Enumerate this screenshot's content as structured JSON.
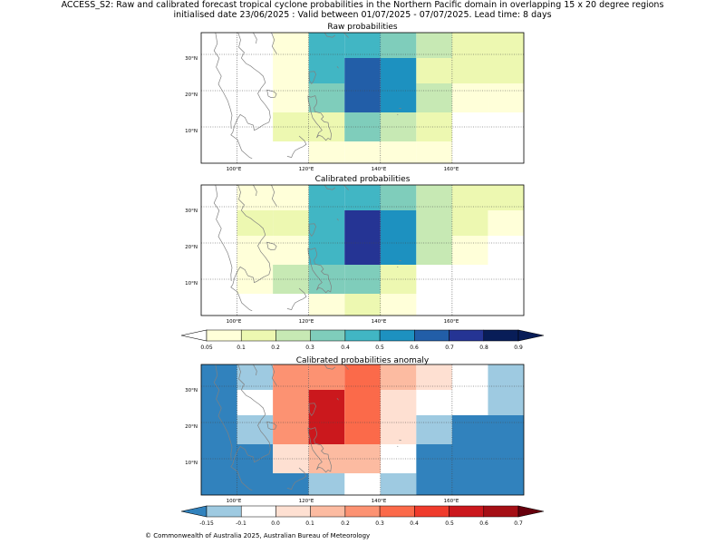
{
  "title_line1": "ACCESS_S2: Raw and calibrated forecast tropical cyclone probabilities in the Northern Pacific domain in overlapping 15 x 20 degree regions",
  "title_line2": "initialised date 23/06/2025 :  Valid between 01/07/2025 - 07/07/2025. Lead time: 8 days",
  "footer": "© Commonwealth of Australia 2025, Australian Bureau of Meteorology",
  "colors": {
    "coast": "#808080",
    "grid": "#444444",
    "seq": [
      "#ffffd9",
      "#edf8b1",
      "#c7e9b4",
      "#7fcdbb",
      "#41b6c4",
      "#1d91c0",
      "#225ea8",
      "#253494",
      "#081d58"
    ],
    "seq_under": "#ffffff",
    "div": [
      "#3182bd",
      "#9ecae1",
      "#ffffff",
      "#fee0d2",
      "#fcbba1",
      "#fc9272",
      "#fb6a4a",
      "#ef3b2c",
      "#cb181d",
      "#a50f15"
    ],
    "div_under": "#3182bd",
    "div_over": "#67000d"
  },
  "chart_data": [
    {
      "type": "heatmap",
      "title": "Raw probabilities",
      "x_ticks": [
        "100°E",
        "120°E",
        "140°E",
        "160°E"
      ],
      "y_ticks": [
        "10°N",
        "20°N",
        "30°N"
      ],
      "xlim": [
        90,
        180
      ],
      "ylim": [
        0,
        36
      ],
      "grid": true,
      "cells": [
        {
          "lon": [
            110,
            120
          ],
          "lat": [
            29,
            36
          ],
          "value": 0.07
        },
        {
          "lon": [
            120,
            130
          ],
          "lat": [
            29,
            36
          ],
          "value": 0.42
        },
        {
          "lon": [
            130,
            140
          ],
          "lat": [
            29,
            36
          ],
          "value": 0.42
        },
        {
          "lon": [
            140,
            150
          ],
          "lat": [
            29,
            36
          ],
          "value": 0.35
        },
        {
          "lon": [
            150,
            160
          ],
          "lat": [
            29,
            36
          ],
          "value": 0.25
        },
        {
          "lon": [
            160,
            180
          ],
          "lat": [
            29,
            36
          ],
          "value": 0.15
        },
        {
          "lon": [
            110,
            120
          ],
          "lat": [
            22,
            29
          ],
          "value": 0.07
        },
        {
          "lon": [
            120,
            130
          ],
          "lat": [
            22,
            29
          ],
          "value": 0.42
        },
        {
          "lon": [
            130,
            140
          ],
          "lat": [
            22,
            29
          ],
          "value": 0.68
        },
        {
          "lon": [
            140,
            150
          ],
          "lat": [
            22,
            29
          ],
          "value": 0.55
        },
        {
          "lon": [
            150,
            160
          ],
          "lat": [
            22,
            29
          ],
          "value": 0.15
        },
        {
          "lon": [
            160,
            180
          ],
          "lat": [
            22,
            29
          ],
          "value": 0.15
        },
        {
          "lon": [
            110,
            120
          ],
          "lat": [
            14,
            22
          ],
          "value": 0.07
        },
        {
          "lon": [
            120,
            130
          ],
          "lat": [
            14,
            22
          ],
          "value": 0.35
        },
        {
          "lon": [
            130,
            140
          ],
          "lat": [
            14,
            22
          ],
          "value": 0.68
        },
        {
          "lon": [
            140,
            150
          ],
          "lat": [
            14,
            22
          ],
          "value": 0.55
        },
        {
          "lon": [
            150,
            160
          ],
          "lat": [
            14,
            22
          ],
          "value": 0.25
        },
        {
          "lon": [
            160,
            170
          ],
          "lat": [
            14,
            22
          ],
          "value": 0.07
        },
        {
          "lon": [
            170,
            180
          ],
          "lat": [
            14,
            22
          ],
          "value": 0.07
        },
        {
          "lon": [
            110,
            120
          ],
          "lat": [
            6,
            14
          ],
          "value": 0.15
        },
        {
          "lon": [
            120,
            130
          ],
          "lat": [
            6,
            14
          ],
          "value": 0.15
        },
        {
          "lon": [
            130,
            140
          ],
          "lat": [
            6,
            14
          ],
          "value": 0.35
        },
        {
          "lon": [
            140,
            150
          ],
          "lat": [
            6,
            14
          ],
          "value": 0.25
        },
        {
          "lon": [
            150,
            160
          ],
          "lat": [
            6,
            14
          ],
          "value": 0.15
        },
        {
          "lon": [
            120,
            130
          ],
          "lat": [
            0,
            6
          ],
          "value": 0.07
        },
        {
          "lon": [
            130,
            140
          ],
          "lat": [
            0,
            6
          ],
          "value": 0.07
        },
        {
          "lon": [
            140,
            150
          ],
          "lat": [
            0,
            6
          ],
          "value": 0.07
        },
        {
          "lon": [
            150,
            160
          ],
          "lat": [
            0,
            6
          ],
          "value": 0.07
        }
      ]
    },
    {
      "type": "heatmap",
      "title": "Calibrated probabilities",
      "x_ticks": [
        "100°E",
        "120°E",
        "140°E",
        "160°E"
      ],
      "y_ticks": [
        "10°N",
        "20°N",
        "30°N"
      ],
      "xlim": [
        90,
        180
      ],
      "ylim": [
        0,
        36
      ],
      "grid": true,
      "cells": [
        {
          "lon": [
            100,
            110
          ],
          "lat": [
            29,
            36
          ],
          "value": 0.07
        },
        {
          "lon": [
            110,
            120
          ],
          "lat": [
            29,
            36
          ],
          "value": 0.07
        },
        {
          "lon": [
            120,
            130
          ],
          "lat": [
            29,
            36
          ],
          "value": 0.42
        },
        {
          "lon": [
            130,
            140
          ],
          "lat": [
            29,
            36
          ],
          "value": 0.42
        },
        {
          "lon": [
            140,
            150
          ],
          "lat": [
            29,
            36
          ],
          "value": 0.35
        },
        {
          "lon": [
            150,
            160
          ],
          "lat": [
            29,
            36
          ],
          "value": 0.25
        },
        {
          "lon": [
            160,
            180
          ],
          "lat": [
            29,
            36
          ],
          "value": 0.15
        },
        {
          "lon": [
            100,
            110
          ],
          "lat": [
            22,
            29
          ],
          "value": 0.15
        },
        {
          "lon": [
            110,
            120
          ],
          "lat": [
            22,
            29
          ],
          "value": 0.15
        },
        {
          "lon": [
            120,
            130
          ],
          "lat": [
            22,
            29
          ],
          "value": 0.42
        },
        {
          "lon": [
            130,
            140
          ],
          "lat": [
            22,
            29
          ],
          "value": 0.75
        },
        {
          "lon": [
            140,
            150
          ],
          "lat": [
            22,
            29
          ],
          "value": 0.55
        },
        {
          "lon": [
            150,
            160
          ],
          "lat": [
            22,
            29
          ],
          "value": 0.25
        },
        {
          "lon": [
            160,
            170
          ],
          "lat": [
            22,
            29
          ],
          "value": 0.15
        },
        {
          "lon": [
            170,
            180
          ],
          "lat": [
            22,
            29
          ],
          "value": 0.07
        },
        {
          "lon": [
            100,
            110
          ],
          "lat": [
            14,
            22
          ],
          "value": 0.07
        },
        {
          "lon": [
            110,
            120
          ],
          "lat": [
            14,
            22
          ],
          "value": 0.07
        },
        {
          "lon": [
            120,
            130
          ],
          "lat": [
            14,
            22
          ],
          "value": 0.42
        },
        {
          "lon": [
            130,
            140
          ],
          "lat": [
            14,
            22
          ],
          "value": 0.75
        },
        {
          "lon": [
            140,
            150
          ],
          "lat": [
            14,
            22
          ],
          "value": 0.55
        },
        {
          "lon": [
            150,
            160
          ],
          "lat": [
            14,
            22
          ],
          "value": 0.25
        },
        {
          "lon": [
            160,
            170
          ],
          "lat": [
            14,
            22
          ],
          "value": 0.07
        },
        {
          "lon": [
            100,
            110
          ],
          "lat": [
            6,
            14
          ],
          "value": 0.07
        },
        {
          "lon": [
            110,
            120
          ],
          "lat": [
            6,
            14
          ],
          "value": 0.25
        },
        {
          "lon": [
            120,
            130
          ],
          "lat": [
            6,
            14
          ],
          "value": 0.35
        },
        {
          "lon": [
            130,
            140
          ],
          "lat": [
            6,
            14
          ],
          "value": 0.35
        },
        {
          "lon": [
            140,
            150
          ],
          "lat": [
            6,
            14
          ],
          "value": 0.15
        },
        {
          "lon": [
            140,
            150
          ],
          "lat": [
            0,
            6
          ],
          "value": 0.07
        },
        {
          "lon": [
            130,
            140
          ],
          "lat": [
            0,
            6
          ],
          "value": 0.15
        },
        {
          "lon": [
            120,
            130
          ],
          "lat": [
            0,
            6
          ],
          "value": 0.07
        }
      ]
    },
    {
      "type": "heatmap",
      "title": "Calibrated probabilities anomaly",
      "x_ticks": [
        "100°E",
        "120°E",
        "140°E",
        "160°E"
      ],
      "y_ticks": [
        "10°N",
        "20°N",
        "30°N"
      ],
      "xlim": [
        90,
        180
      ],
      "ylim": [
        0,
        36
      ],
      "grid": true,
      "cells": [
        {
          "lon": [
            90,
            100
          ],
          "lat": [
            29,
            36
          ],
          "value": -0.2
        },
        {
          "lon": [
            100,
            110
          ],
          "lat": [
            29,
            36
          ],
          "value": -0.12
        },
        {
          "lon": [
            110,
            120
          ],
          "lat": [
            29,
            36
          ],
          "value": 0.25
        },
        {
          "lon": [
            120,
            130
          ],
          "lat": [
            29,
            36
          ],
          "value": 0.25
        },
        {
          "lon": [
            130,
            140
          ],
          "lat": [
            29,
            36
          ],
          "value": 0.35
        },
        {
          "lon": [
            140,
            150
          ],
          "lat": [
            29,
            36
          ],
          "value": 0.15
        },
        {
          "lon": [
            150,
            160
          ],
          "lat": [
            29,
            36
          ],
          "value": 0.05
        },
        {
          "lon": [
            170,
            180
          ],
          "lat": [
            29,
            36
          ],
          "value": -0.12
        },
        {
          "lon": [
            90,
            100
          ],
          "lat": [
            22,
            29
          ],
          "value": -0.2
        },
        {
          "lon": [
            110,
            120
          ],
          "lat": [
            22,
            29
          ],
          "value": 0.25
        },
        {
          "lon": [
            120,
            130
          ],
          "lat": [
            22,
            29
          ],
          "value": 0.55
        },
        {
          "lon": [
            130,
            140
          ],
          "lat": [
            22,
            29
          ],
          "value": 0.35
        },
        {
          "lon": [
            140,
            150
          ],
          "lat": [
            22,
            29
          ],
          "value": 0.05
        },
        {
          "lon": [
            170,
            180
          ],
          "lat": [
            22,
            29
          ],
          "value": -0.12
        },
        {
          "lon": [
            90,
            100
          ],
          "lat": [
            14,
            22
          ],
          "value": -0.2
        },
        {
          "lon": [
            100,
            110
          ],
          "lat": [
            14,
            22
          ],
          "value": -0.12
        },
        {
          "lon": [
            110,
            120
          ],
          "lat": [
            14,
            22
          ],
          "value": 0.25
        },
        {
          "lon": [
            120,
            130
          ],
          "lat": [
            14,
            22
          ],
          "value": 0.55
        },
        {
          "lon": [
            130,
            140
          ],
          "lat": [
            14,
            22
          ],
          "value": 0.35
        },
        {
          "lon": [
            140,
            150
          ],
          "lat": [
            14,
            22
          ],
          "value": 0.05
        },
        {
          "lon": [
            150,
            160
          ],
          "lat": [
            14,
            22
          ],
          "value": -0.12
        },
        {
          "lon": [
            160,
            180
          ],
          "lat": [
            14,
            22
          ],
          "value": -0.2
        },
        {
          "lon": [
            90,
            110
          ],
          "lat": [
            6,
            14
          ],
          "value": -0.2
        },
        {
          "lon": [
            110,
            120
          ],
          "lat": [
            6,
            14
          ],
          "value": 0.05
        },
        {
          "lon": [
            120,
            140
          ],
          "lat": [
            6,
            14
          ],
          "value": 0.15
        },
        {
          "lon": [
            150,
            180
          ],
          "lat": [
            6,
            14
          ],
          "value": -0.2
        },
        {
          "lon": [
            90,
            120
          ],
          "lat": [
            0,
            6
          ],
          "value": -0.2
        },
        {
          "lon": [
            120,
            130
          ],
          "lat": [
            0,
            6
          ],
          "value": -0.12
        },
        {
          "lon": [
            140,
            150
          ],
          "lat": [
            0,
            6
          ],
          "value": -0.12
        },
        {
          "lon": [
            150,
            180
          ],
          "lat": [
            0,
            6
          ],
          "value": -0.2
        }
      ]
    }
  ],
  "colorbars": [
    {
      "labels": [
        "0.05",
        "0.1",
        "0.2",
        "0.3",
        "0.4",
        "0.5",
        "0.6",
        "0.7",
        "0.8",
        "0.9"
      ]
    },
    {
      "labels": [
        "-0.15",
        "-0.1",
        "0.0",
        "0.1",
        "0.2",
        "0.3",
        "0.4",
        "0.5",
        "0.6",
        "0.7"
      ]
    }
  ]
}
